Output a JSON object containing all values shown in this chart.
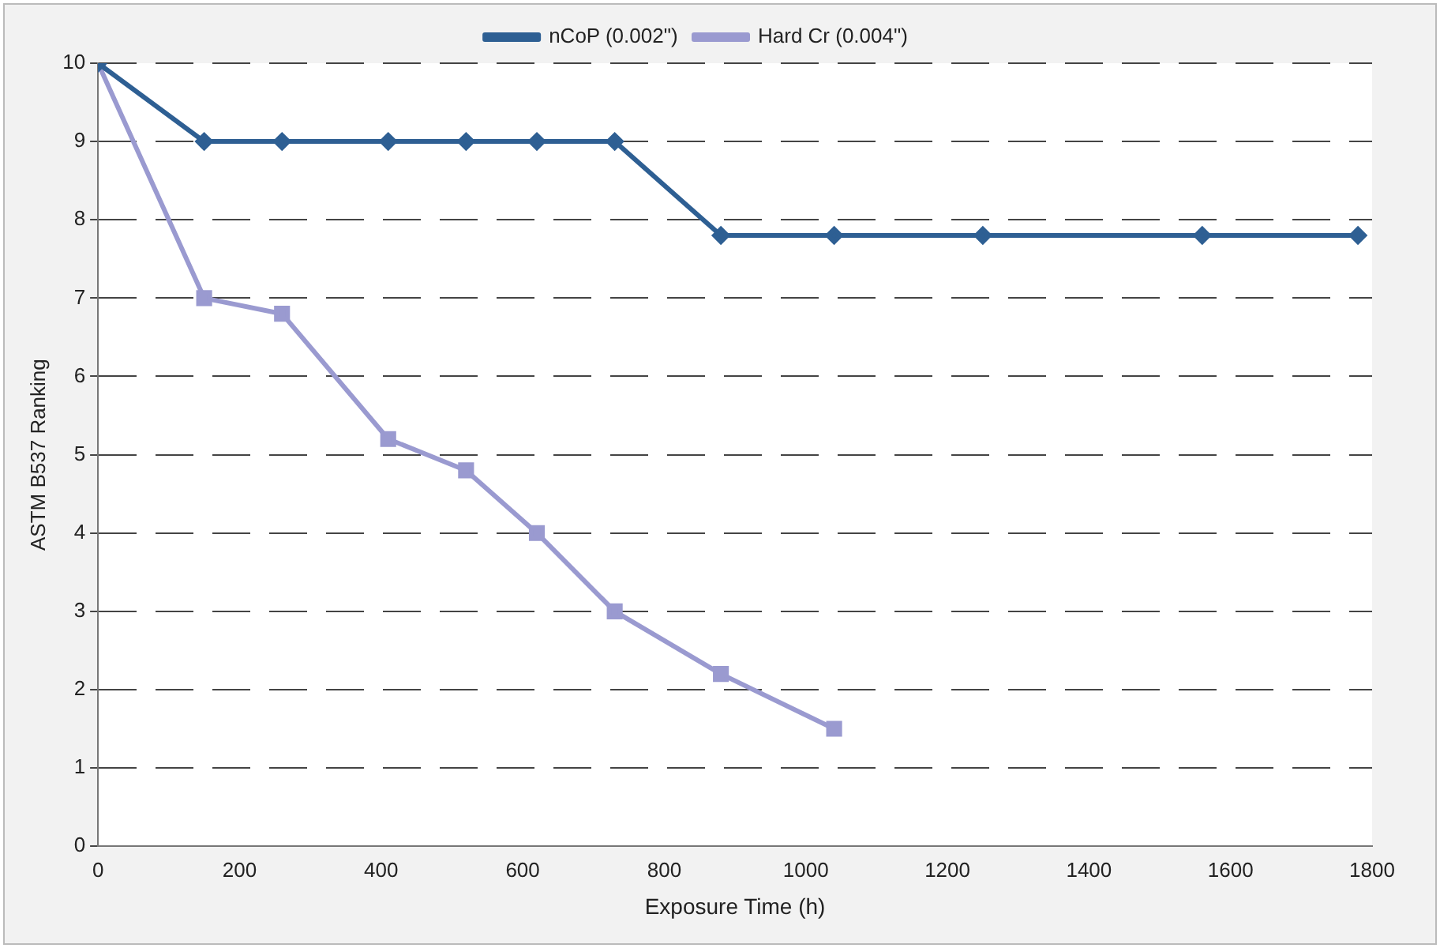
{
  "chart_data": {
    "type": "line",
    "xlabel": "Exposure Time (h)",
    "ylabel": "ASTM B537 Ranking",
    "xlim": [
      0,
      1800
    ],
    "xticks": [
      0,
      200,
      400,
      600,
      800,
      1000,
      1200,
      1400,
      1600,
      1800
    ],
    "ylim": [
      0,
      10
    ],
    "yticks": [
      0,
      1,
      2,
      3,
      4,
      5,
      6,
      7,
      8,
      9,
      10
    ],
    "grid": "y",
    "legend": "top",
    "line_style": "solid",
    "series": [
      {
        "name": "nCoP (0.002\")",
        "color": "#2e5f93",
        "marker": "diamond",
        "x": [
          0,
          150,
          260,
          410,
          520,
          620,
          730,
          880,
          1040,
          1250,
          1560,
          1780
        ],
        "values": [
          10,
          9,
          9,
          9,
          9,
          9,
          9,
          7.8,
          7.8,
          7.8,
          7.8,
          7.8
        ]
      },
      {
        "name": "Hard Cr (0.004\")",
        "color": "#9a9ad0",
        "marker": "square",
        "x": [
          0,
          150,
          260,
          410,
          520,
          620,
          730,
          880,
          1040
        ],
        "values": [
          10,
          7,
          6.8,
          5.2,
          4.8,
          4,
          3,
          2.2,
          1.5
        ]
      }
    ]
  }
}
